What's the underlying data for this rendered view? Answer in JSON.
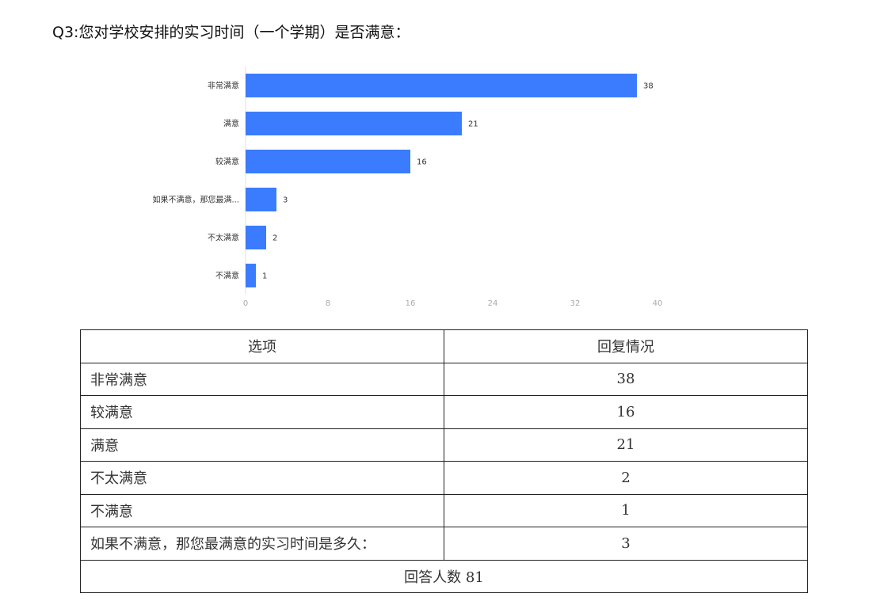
{
  "title": "Q3:您对学校安排的实习时间（一个学期）是否满意：",
  "chart_data": {
    "type": "bar",
    "orientation": "horizontal",
    "categories": [
      "非常满意",
      "满意",
      "较满意",
      "如果不满意，那您最满...",
      "不太满意",
      "不满意"
    ],
    "values": [
      38,
      21,
      16,
      3,
      2,
      1
    ],
    "xlim": [
      0,
      40
    ],
    "xticks": [
      0,
      8,
      16,
      24,
      32,
      40
    ],
    "bar_color": "#3b7cff",
    "grid": false,
    "data_labels": true
  },
  "table": {
    "headers": [
      "选项",
      "回复情况"
    ],
    "rows": [
      {
        "option": "非常满意",
        "count": "38"
      },
      {
        "option": "较满意",
        "count": "16"
      },
      {
        "option": "满意",
        "count": "21"
      },
      {
        "option": "不太满意",
        "count": "2"
      },
      {
        "option": "不满意",
        "count": "1"
      },
      {
        "option": "如果不满意，那您最满意的实习时间是多久：",
        "count": "3"
      }
    ],
    "footer": "回答人数 81"
  }
}
